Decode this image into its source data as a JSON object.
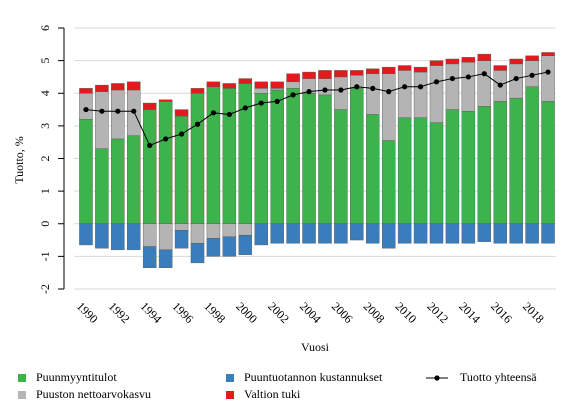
{
  "chart_data": {
    "type": "bar",
    "stacked": true,
    "xlabel": "Vuosi",
    "ylabel": "Tuotto, %",
    "categories": [
      "1990",
      null,
      "1992",
      null,
      "1994",
      null,
      "1996",
      null,
      "1998",
      null,
      "2000",
      null,
      "2002",
      null,
      "2004",
      null,
      "2006",
      null,
      "2008",
      null,
      "2010",
      null,
      "2012",
      null,
      "2014",
      null,
      "2016",
      null,
      "2018",
      null
    ],
    "ylim": [
      -2,
      6
    ],
    "yticks": [
      -2,
      -1,
      0,
      1,
      2,
      3,
      4,
      5,
      6
    ],
    "grid": true,
    "legend": "bottom",
    "series": [
      {
        "name": "Puunmyyntitulot",
        "color": "#3cb44b",
        "values": [
          3.2,
          2.3,
          2.6,
          2.7,
          3.5,
          3.75,
          3.3,
          4.0,
          4.2,
          4.15,
          4.3,
          4.0,
          4.1,
          4.15,
          4.0,
          3.95,
          3.5,
          4.15,
          3.35,
          2.55,
          3.25,
          3.25,
          3.1,
          3.5,
          3.45,
          3.6,
          3.75,
          3.85,
          4.2,
          3.75
        ]
      },
      {
        "name": "Puuston nettoarvokasvu",
        "color": "#b4b4b4",
        "values": [
          0.8,
          1.75,
          1.5,
          1.4,
          -0.7,
          -0.8,
          -0.2,
          -0.6,
          -0.45,
          -0.4,
          -0.35,
          0.15,
          0.05,
          0.2,
          0.45,
          0.5,
          1.0,
          0.4,
          1.25,
          2.05,
          1.45,
          1.4,
          1.75,
          1.4,
          1.5,
          1.4,
          0.95,
          1.05,
          0.8,
          1.4
        ]
      },
      {
        "name": "Puuntuotannon kustannukset",
        "color": "#3a7dbd",
        "values": [
          -0.65,
          -0.75,
          -0.8,
          -0.8,
          -0.65,
          -0.55,
          -0.55,
          -0.6,
          -0.55,
          -0.6,
          -0.6,
          -0.65,
          -0.6,
          -0.6,
          -0.6,
          -0.6,
          -0.6,
          -0.5,
          -0.6,
          -0.75,
          -0.6,
          -0.6,
          -0.6,
          -0.6,
          -0.6,
          -0.55,
          -0.6,
          -0.6,
          -0.6,
          -0.6
        ]
      },
      {
        "name": "Valtion tuki",
        "color": "#e31a1c",
        "values": [
          0.15,
          0.2,
          0.2,
          0.25,
          0.2,
          0.05,
          0.2,
          0.15,
          0.15,
          0.15,
          0.15,
          0.2,
          0.2,
          0.25,
          0.2,
          0.25,
          0.2,
          0.15,
          0.15,
          0.2,
          0.15,
          0.15,
          0.15,
          0.15,
          0.15,
          0.2,
          0.15,
          0.15,
          0.15,
          0.1
        ]
      },
      {
        "name": "Tuotto yhteensä",
        "color": "#000000",
        "type": "line",
        "values": [
          3.5,
          3.45,
          3.45,
          3.45,
          2.4,
          2.6,
          2.75,
          3.05,
          3.4,
          3.35,
          3.55,
          3.7,
          3.75,
          3.95,
          4.05,
          4.1,
          4.1,
          4.2,
          4.15,
          4.05,
          4.2,
          4.2,
          4.35,
          4.45,
          4.5,
          4.6,
          4.25,
          4.45,
          4.55,
          4.65
        ]
      }
    ]
  }
}
